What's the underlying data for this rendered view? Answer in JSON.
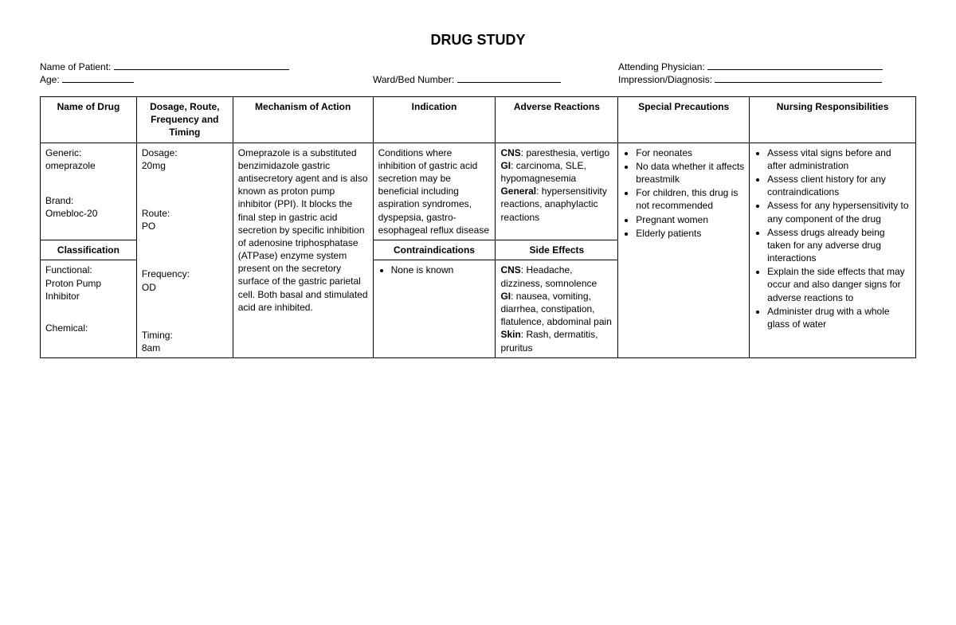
{
  "title": "DRUG STUDY",
  "meta": {
    "patient_label": "Name of Patient:",
    "age_label": "Age:",
    "ward_label": "Ward/Bed Number:",
    "physician_label": "Attending Physician:",
    "impression_label": "Impression/Diagnosis:"
  },
  "headers": {
    "drug": "Name of Drug",
    "dose": "Dosage, Route, Frequency and Timing",
    "moa": "Mechanism of Action",
    "indication": "Indication",
    "adverse": "Adverse Reactions",
    "precautions": "Special Precautions",
    "nursing": "Nursing Responsibilities",
    "classification": "Classification",
    "contra": "Contraindications",
    "side": "Side Effects"
  },
  "drug": {
    "generic_label": "Generic:",
    "generic_value": "omeprazole",
    "brand_label": "Brand:",
    "brand_value": "Omebloc-20",
    "class_func_label": "Functional:",
    "class_func_value": "Proton Pump Inhibitor",
    "class_chem_label": "Chemical:",
    "class_chem_value": ""
  },
  "dose": {
    "dosage_label": "Dosage:",
    "dosage_value": "20mg",
    "route_label": "Route:",
    "route_value": "PO",
    "freq_label": "Frequency:",
    "freq_value": "OD",
    "timing_label": "Timing:",
    "timing_value": "8am"
  },
  "moa_text": "Omeprazole is a substituted benzimidazole gastric antisecretory agent and is also known as proton pump inhibitor (PPI). It blocks the final step in gastric acid secretion by specific inhibition of adenosine triphosphatase (ATPase) enzyme system present on the secretory surface of the gastric parietal cell. Both basal and stimulated acid are inhibited.",
  "indication_text": "Conditions where inhibition of gastric acid secretion may be beneficial including aspiration syndromes, dyspepsia, gastro-esophageal reflux disease",
  "adverse": {
    "cns_label": "CNS",
    "cns_text": ": paresthesia, vertigo",
    "gi_label": "GI",
    "gi_text": ": carcinoma, SLE, hypomagnesemia",
    "gen_label": "General",
    "gen_text": ": hypersensitivity reactions, anaphylactic reactions"
  },
  "contra_items": [
    "None is known"
  ],
  "side": {
    "cns_label": "CNS",
    "cns_text": ": Headache, dizziness, somnolence",
    "gi_label": "GI",
    "gi_text": ": nausea, vomiting, diarrhea, constipation, flatulence, abdominal pain",
    "skin_label": "Skin",
    "skin_text": ": Rash, dermatitis, pruritus"
  },
  "precautions_items": [
    "For neonates",
    "No data whether it affects breastmilk",
    "For children, this drug is not recommended",
    "Pregnant women",
    "Elderly patients"
  ],
  "nursing_items": [
    "Assess vital signs before and after administration",
    "Assess client history for any contraindications",
    "Assess for any hypersensitivity to any component of the drug",
    "Assess drugs already being taken for any adverse drug interactions",
    "Explain the side effects that may occur and also danger signs for adverse reactions to",
    "Administer drug with a whole glass of water"
  ]
}
